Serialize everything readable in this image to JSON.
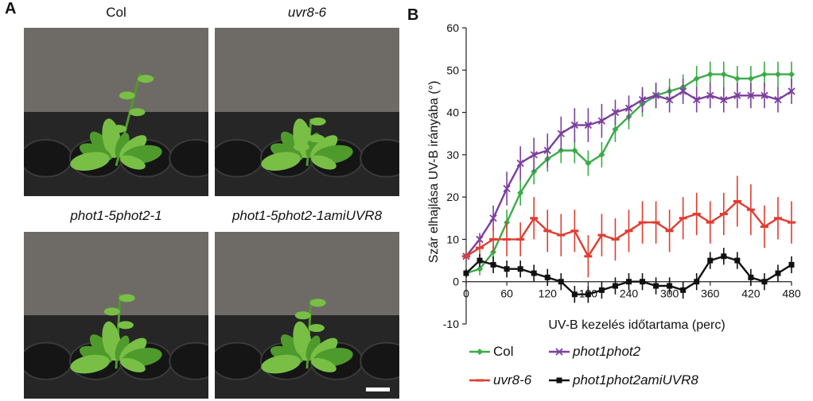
{
  "panel_a": {
    "letter": "A",
    "photos": [
      {
        "label": "Col",
        "italic": false
      },
      {
        "label": "uvr8-6",
        "italic": true
      },
      {
        "label": "phot1-5phot2-1",
        "italic": true
      },
      {
        "label": "phot1-5phot2-1amiUVR8",
        "italic": true
      }
    ],
    "colors": {
      "background": "#6e6a66",
      "tray": "#262626",
      "leaf": "#4f9a2c",
      "leaf_light": "#79bf46"
    }
  },
  "panel_b": {
    "letter": "B"
  },
  "chart_data": {
    "type": "line",
    "xlabel": "UV-B kezelés időtartama (perc)",
    "ylabel": "Szár elhajlása UV-B irányába (°)",
    "xlim": [
      0,
      480
    ],
    "ylim": [
      -10,
      60
    ],
    "xticks": [
      0,
      60,
      120,
      180,
      240,
      300,
      360,
      420,
      480
    ],
    "xtick_labels": [
      "0",
      "60",
      "120",
      "180",
      "240",
      "300",
      "360",
      "420",
      "480"
    ],
    "yticks": [
      -10,
      0,
      10,
      20,
      30,
      40,
      50,
      60
    ],
    "ytick_labels": [
      "-10",
      "0",
      "10",
      "20",
      "30",
      "40",
      "50",
      "60"
    ],
    "x": [
      0,
      20,
      40,
      60,
      80,
      100,
      120,
      140,
      160,
      180,
      200,
      220,
      240,
      260,
      280,
      300,
      320,
      340,
      360,
      380,
      400,
      420,
      440,
      460,
      480
    ],
    "series": [
      {
        "name": "Col",
        "color": "#3bab49",
        "marker": "diamond",
        "values": [
          2,
          3,
          7,
          14,
          21,
          26,
          29,
          31,
          31,
          28,
          30,
          36,
          39,
          42,
          44,
          45,
          46,
          48,
          49,
          49,
          48,
          48,
          49,
          49,
          49
        ],
        "errors": [
          1,
          1.5,
          2,
          3,
          3,
          3,
          3,
          3,
          3,
          3,
          3,
          3,
          3,
          3,
          3,
          3,
          3,
          3,
          3,
          3,
          3,
          3,
          3,
          3,
          3
        ]
      },
      {
        "name": "phot1phot2",
        "color": "#7b3f9e",
        "marker": "x",
        "values": [
          6,
          10,
          15,
          22,
          28,
          30,
          31,
          35,
          37,
          37,
          38,
          40,
          41,
          43,
          44,
          43,
          45,
          43,
          44,
          43,
          44,
          44,
          44,
          43,
          45
        ],
        "errors": [
          1,
          1.5,
          3,
          4,
          4,
          4,
          4,
          4,
          4,
          4,
          4,
          3,
          3,
          3,
          3,
          3,
          3,
          3,
          3,
          3,
          3,
          3,
          3,
          3,
          3
        ]
      },
      {
        "name": "uvr8-6",
        "color": "#e03c31",
        "marker": "dash",
        "values": [
          6,
          8,
          10,
          10,
          10,
          15,
          12,
          11,
          12,
          6,
          11,
          10,
          12,
          14,
          14,
          12,
          15,
          16,
          14,
          16,
          19,
          17,
          13,
          15,
          14
        ],
        "errors": [
          1,
          2,
          3,
          4,
          4,
          5,
          5,
          5,
          5,
          5,
          5,
          5,
          5,
          5,
          5,
          5,
          5,
          5,
          5,
          5,
          6,
          6,
          5,
          5,
          5
        ]
      },
      {
        "name": "phot1phot2amiUVR8",
        "color": "#111111",
        "marker": "square",
        "values": [
          2,
          5,
          4,
          3,
          3,
          2,
          1,
          0,
          -3,
          -3,
          -2,
          -1,
          0,
          0,
          -1,
          -1,
          -2,
          0,
          5,
          6,
          5,
          1,
          0,
          2,
          4
        ],
        "errors": [
          1,
          1.5,
          2,
          2,
          2,
          2,
          2,
          2,
          2,
          2,
          2,
          2,
          2,
          2,
          2,
          2,
          2,
          2,
          2,
          2,
          2,
          2,
          2,
          2,
          2
        ]
      }
    ],
    "grid": false,
    "legend": "bottom"
  }
}
